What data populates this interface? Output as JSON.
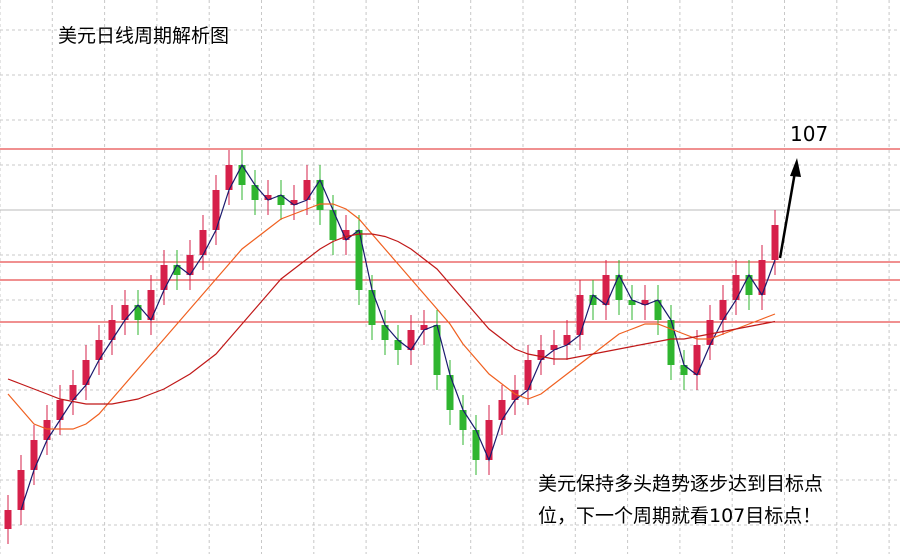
{
  "chart_data": {
    "type": "candlestick",
    "title": "美元日线周期解析图",
    "annotation_lines": [
      "美元保持多头趋势逐步达到目标点",
      "位，下一个周期就看107目标点！"
    ],
    "target": 107,
    "levels": [
      104.74,
      104.38,
      103.54
    ],
    "ylim": [
      98.9,
      109.98
    ],
    "up_color": "#d6204a",
    "down_color": "#2fb52f",
    "level_color": "#e02020",
    "open": [
      99.4,
      99.78,
      100.58,
      101.18,
      101.58,
      101.98,
      102.28,
      102.78,
      103.18,
      103.58,
      103.88,
      103.58,
      104.18,
      104.68,
      104.48,
      104.88,
      105.38,
      106.18,
      106.68,
      106.28,
      105.98,
      106.08,
      105.88,
      105.98,
      106.38,
      105.78,
      105.18,
      105.38,
      104.18,
      103.48,
      103.18,
      102.98,
      103.38,
      103.48,
      102.48,
      101.78,
      101.38,
      100.78,
      101.58,
      101.98,
      102.18,
      102.78,
      102.98,
      103.08,
      103.28,
      104.08,
      103.88,
      104.48,
      103.98,
      103.88,
      103.98,
      103.58,
      102.68,
      102.48,
      103.08,
      103.58,
      103.98,
      104.48,
      104.08,
      104.78
    ],
    "high": [
      100.08,
      100.88,
      101.48,
      101.88,
      102.28,
      102.58,
      103.08,
      103.48,
      103.88,
      104.18,
      104.18,
      104.48,
      104.98,
      104.98,
      105.18,
      105.68,
      106.48,
      106.98,
      106.98,
      106.58,
      106.38,
      106.38,
      106.28,
      106.68,
      106.68,
      106.08,
      105.68,
      105.68,
      104.48,
      103.78,
      103.48,
      103.68,
      103.78,
      103.78,
      102.78,
      102.08,
      101.68,
      101.88,
      102.28,
      102.48,
      103.08,
      103.28,
      103.38,
      103.58,
      104.38,
      104.38,
      104.78,
      104.78,
      104.28,
      104.28,
      104.28,
      103.88,
      102.98,
      103.38,
      103.88,
      104.28,
      104.78,
      104.78,
      105.08,
      105.78
    ],
    "low": [
      99.1,
      99.48,
      100.28,
      100.88,
      101.28,
      101.68,
      101.98,
      102.48,
      102.88,
      103.28,
      103.28,
      103.28,
      103.88,
      104.18,
      104.18,
      104.58,
      105.08,
      105.88,
      105.98,
      105.68,
      105.68,
      105.58,
      105.58,
      105.68,
      105.48,
      104.88,
      104.88,
      103.88,
      103.18,
      102.88,
      102.68,
      102.68,
      103.08,
      102.18,
      101.48,
      101.08,
      100.48,
      100.48,
      101.28,
      101.68,
      101.88,
      102.48,
      102.68,
      102.78,
      102.98,
      103.58,
      103.58,
      103.68,
      103.58,
      103.58,
      103.28,
      102.38,
      102.18,
      102.18,
      102.78,
      103.28,
      103.68,
      103.78,
      103.78,
      104.48
    ],
    "close": [
      99.78,
      100.58,
      101.18,
      101.58,
      101.98,
      102.28,
      102.78,
      103.18,
      103.58,
      103.88,
      103.58,
      104.18,
      104.68,
      104.48,
      104.88,
      105.38,
      106.18,
      106.68,
      106.28,
      105.98,
      106.08,
      105.88,
      105.98,
      106.38,
      105.78,
      105.18,
      105.38,
      104.18,
      103.48,
      103.18,
      102.98,
      103.38,
      103.48,
      102.48,
      101.78,
      101.38,
      100.78,
      101.58,
      101.98,
      102.18,
      102.78,
      102.98,
      103.08,
      103.28,
      104.08,
      103.88,
      104.48,
      103.98,
      103.88,
      103.98,
      103.58,
      102.68,
      102.48,
      103.08,
      103.58,
      103.98,
      104.48,
      104.08,
      104.78,
      105.48
    ],
    "series": [
      {
        "color": "#1a1a6e",
        "values": [
          null,
          99.78,
          100.58,
          101.18,
          101.58,
          101.98,
          102.28,
          102.78,
          103.18,
          103.58,
          103.88,
          103.58,
          104.18,
          104.68,
          104.48,
          104.88,
          105.38,
          106.18,
          106.68,
          106.28,
          105.98,
          106.08,
          105.88,
          105.98,
          106.38,
          105.78,
          105.18,
          105.38,
          104.18,
          103.48,
          103.18,
          102.98,
          103.38,
          103.48,
          102.48,
          101.78,
          101.38,
          100.78,
          101.58,
          101.98,
          102.18,
          102.78,
          102.98,
          103.08,
          103.28,
          104.08,
          103.88,
          104.48,
          103.98,
          103.88,
          103.98,
          103.58,
          102.68,
          102.48,
          103.08,
          103.58,
          103.98,
          104.48,
          104.08,
          104.78
        ]
      },
      {
        "color": "#f06020",
        "values": [
          102.1,
          101.8,
          101.5,
          101.4,
          101.4,
          101.4,
          101.5,
          101.7,
          102.0,
          102.3,
          102.6,
          102.9,
          103.2,
          103.5,
          103.8,
          104.1,
          104.4,
          104.7,
          105.0,
          105.2,
          105.4,
          105.6,
          105.7,
          105.8,
          105.9,
          105.9,
          105.8,
          105.6,
          105.3,
          105.0,
          104.7,
          104.4,
          104.1,
          103.8,
          103.5,
          103.1,
          102.8,
          102.5,
          102.3,
          102.1,
          102.0,
          102.1,
          102.3,
          102.5,
          102.7,
          102.9,
          103.1,
          103.3,
          103.4,
          103.5,
          103.5,
          103.4,
          103.3,
          103.2,
          103.2,
          103.3,
          103.4,
          103.5,
          103.6,
          103.7
        ]
      },
      {
        "color": "#c01818",
        "values": [
          102.4,
          102.3,
          102.2,
          102.1,
          102.0,
          101.95,
          101.9,
          101.9,
          101.9,
          101.95,
          102.0,
          102.1,
          102.2,
          102.35,
          102.5,
          102.7,
          102.9,
          103.2,
          103.5,
          103.8,
          104.1,
          104.4,
          104.6,
          104.8,
          105.0,
          105.15,
          105.25,
          105.3,
          105.3,
          105.25,
          105.15,
          105.0,
          104.8,
          104.6,
          104.3,
          104.0,
          103.7,
          103.4,
          103.2,
          103.0,
          102.9,
          102.85,
          102.8,
          102.8,
          102.85,
          102.9,
          102.95,
          103.0,
          103.05,
          103.1,
          103.15,
          103.2,
          103.2,
          103.25,
          103.3,
          103.35,
          103.4,
          103.45,
          103.5,
          103.55
        ]
      }
    ]
  }
}
